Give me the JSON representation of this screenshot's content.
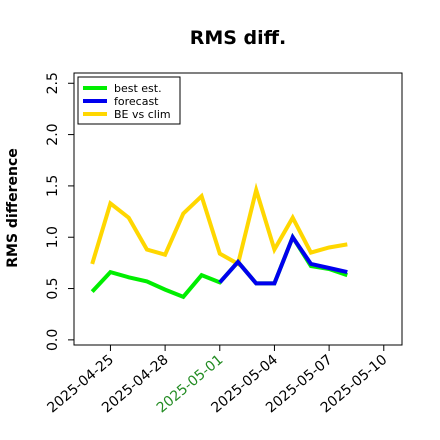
{
  "chart_data": {
    "type": "line",
    "title": "RMS diff.",
    "ylabel": "RMS difference",
    "xlabel": "",
    "ylim": [
      -0.05,
      2.6
    ],
    "yticks": [
      0.0,
      0.5,
      1.0,
      1.5,
      2.0,
      2.5
    ],
    "ytick_labels": [
      "0.0",
      "0.5",
      "1.0",
      "1.5",
      "2.0",
      "2.5"
    ],
    "xlim": [
      "2025-04-23",
      "2025-05-11"
    ],
    "xticks": [
      "2025-04-25",
      "2025-04-28",
      "2025-05-01",
      "2025-05-04",
      "2025-05-07",
      "2025-05-10"
    ],
    "xtick_labels": [
      "2025-04-25",
      "2025-04-28",
      "2025-05-01",
      "2025-05-04",
      "2025-05-07",
      "2025-05-10"
    ],
    "xtick_colors": [
      "#000000",
      "#000000",
      "#228B22",
      "#000000",
      "#000000",
      "#000000"
    ],
    "grid": false,
    "legend_position": "upper-left",
    "x": [
      "2025-04-24",
      "2025-04-25",
      "2025-04-26",
      "2025-04-27",
      "2025-04-28",
      "2025-04-29",
      "2025-04-30",
      "2025-05-01",
      "2025-05-02",
      "2025-05-03",
      "2025-05-04",
      "2025-05-05",
      "2025-05-06",
      "2025-05-07",
      "2025-05-08"
    ],
    "series": [
      {
        "name": "BE vs clim",
        "color": "#FFD700",
        "values": [
          0.74,
          1.33,
          1.19,
          0.88,
          0.83,
          1.23,
          1.4,
          0.84,
          0.74,
          1.46,
          0.88,
          1.19,
          0.85,
          0.9,
          0.93
        ]
      },
      {
        "name": "best est.",
        "color": "#00EE00",
        "values": [
          0.47,
          0.66,
          0.61,
          0.57,
          0.49,
          0.42,
          0.63,
          0.56,
          0.76,
          0.55,
          0.55,
          1.0,
          0.72,
          0.69,
          0.63
        ]
      },
      {
        "name": "forecast",
        "color": "#0000EE",
        "values": [
          null,
          null,
          null,
          null,
          null,
          null,
          null,
          0.56,
          0.76,
          0.55,
          0.55,
          1.0,
          0.74,
          0.7,
          0.66
        ]
      }
    ],
    "legend_order": [
      "best est.",
      "forecast",
      "BE vs clim"
    ]
  }
}
